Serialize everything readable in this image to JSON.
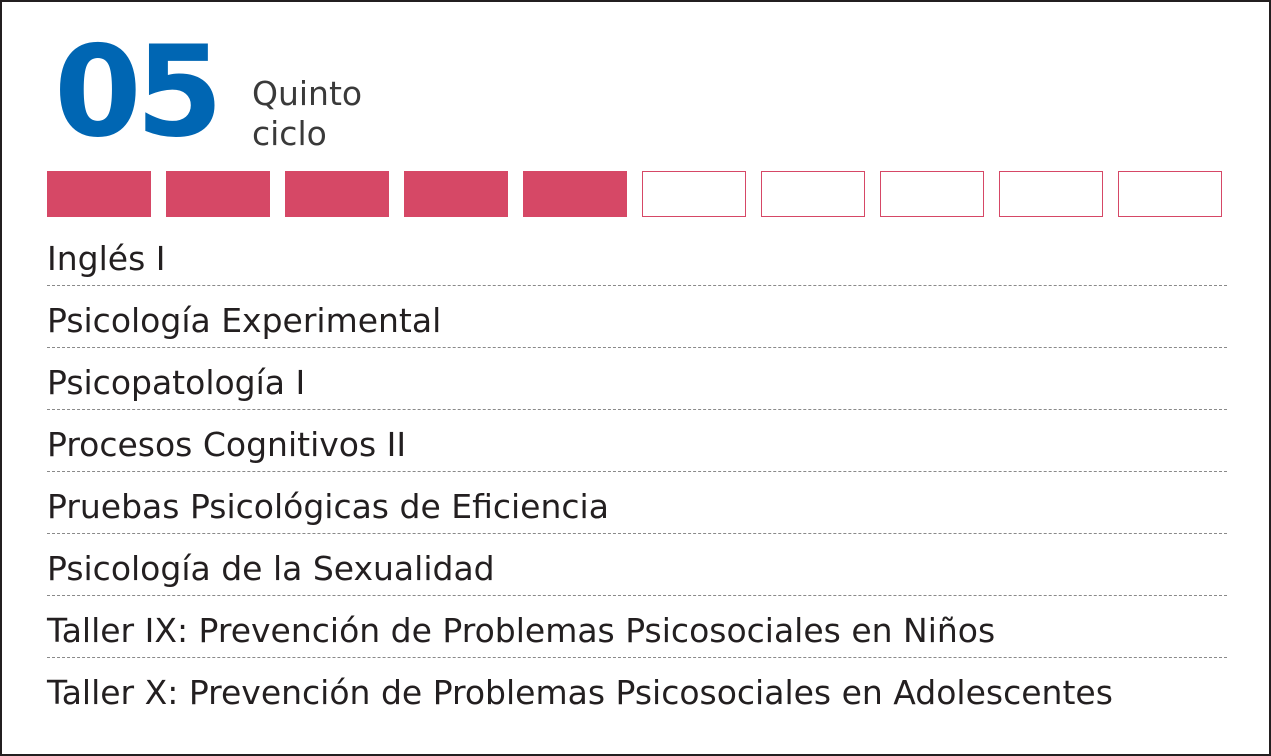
{
  "cycle": {
    "number": "05",
    "label_line1": "Quinto",
    "label_line2": "ciclo"
  },
  "progress": {
    "completed": 5,
    "total": 10,
    "filled_color": "#d64866",
    "number_color": "#0066b3"
  },
  "courses": [
    "Inglés I",
    "Psicología Experimental",
    "Psicopatología I",
    "Procesos Cognitivos II",
    "Pruebas Psicológicas de Eficiencia",
    "Psicología de la Sexualidad",
    "Taller IX: Prevención de Problemas Psicosociales en Niños",
    "Taller X: Prevención de Problemas Psicosociales en Adolescentes"
  ]
}
